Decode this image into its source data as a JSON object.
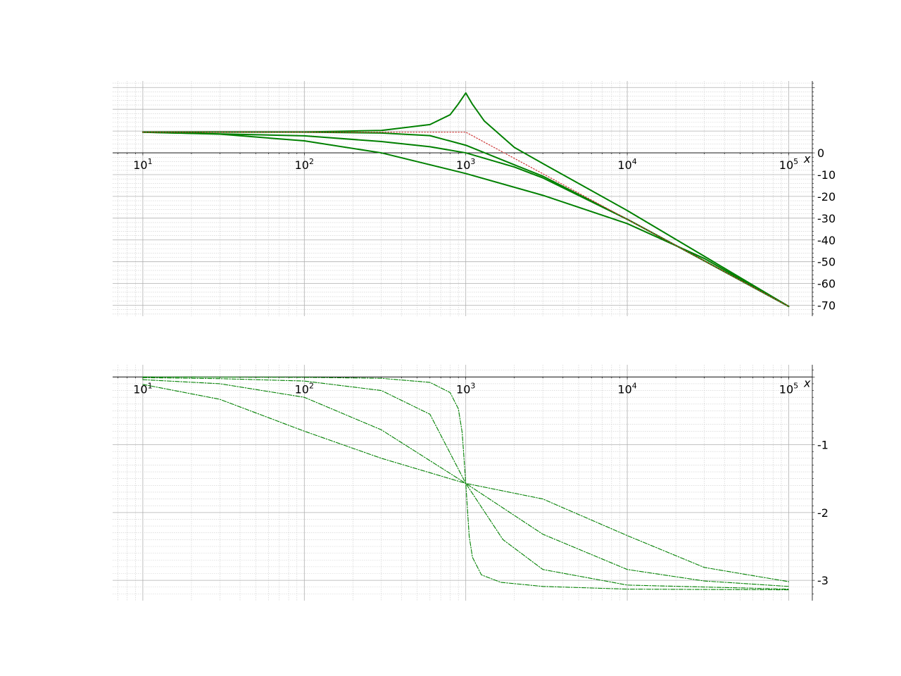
{
  "chart_data": [
    {
      "type": "line",
      "xscale": "log",
      "xlim": [
        6.5,
        140000
      ],
      "ylim": [
        -75,
        33
      ],
      "grid": true,
      "x_axis_label": "x",
      "x_ticks": [
        {
          "value": 10,
          "base": "10",
          "exp": "1"
        },
        {
          "value": 100,
          "base": "10",
          "exp": "2"
        },
        {
          "value": 1000,
          "base": "10",
          "exp": "3"
        },
        {
          "value": 10000,
          "base": "10",
          "exp": "4"
        },
        {
          "value": 100000,
          "base": "10",
          "exp": "5"
        }
      ],
      "y_ticks": [
        {
          "value": 0,
          "label": "0"
        },
        {
          "value": -10,
          "label": "-10"
        },
        {
          "value": -20,
          "label": "-20"
        },
        {
          "value": -30,
          "label": "-30"
        },
        {
          "value": -40,
          "label": "-40"
        },
        {
          "value": -50,
          "label": "-50"
        },
        {
          "value": -60,
          "label": "-60"
        },
        {
          "value": -70,
          "label": "-70"
        }
      ],
      "series": [
        {
          "color": "#008000",
          "style": "solid",
          "x": [
            10,
            100,
            300,
            600,
            800,
            900,
            1000,
            1100,
            1300,
            2000,
            3000,
            10000,
            100000
          ],
          "y": [
            9.54,
            9.56,
            10.3,
            13.0,
            17.5,
            22.5,
            27.5,
            22.3,
            14.7,
            2.5,
            -4.9,
            -26.5,
            -70.5
          ]
        },
        {
          "color": "#008000",
          "style": "solid",
          "x": [
            10,
            100,
            300,
            600,
            1000,
            2000,
            3000,
            10000,
            100000
          ],
          "y": [
            9.54,
            9.51,
            9.1,
            7.9,
            3.5,
            -5.5,
            -10.7,
            -30.5,
            -70.5
          ]
        },
        {
          "color": "#008000",
          "style": "solid",
          "x": [
            10,
            100,
            300,
            600,
            1000,
            2000,
            3000,
            10000,
            100000
          ],
          "y": [
            9.5,
            7.8,
            5.2,
            2.8,
            0.0,
            -6.5,
            -11.5,
            -30.5,
            -70.5
          ]
        },
        {
          "color": "#008000",
          "style": "solid",
          "x": [
            10,
            30,
            100,
            300,
            1000,
            3000,
            10000,
            30000,
            100000
          ],
          "y": [
            9.46,
            8.6,
            5.5,
            0.0,
            -9.5,
            -19.5,
            -32.5,
            -48.5,
            -70.5
          ]
        },
        {
          "color": "#cc3333",
          "style": "dotted",
          "x": [
            10,
            100,
            1000,
            10000,
            100000
          ],
          "y": [
            9.5,
            9.5,
            9.5,
            -30.5,
            -70.5
          ]
        }
      ]
    },
    {
      "type": "line",
      "xscale": "log",
      "xlim": [
        6.5,
        140000
      ],
      "ylim": [
        -3.3,
        0.18
      ],
      "grid": true,
      "x_axis_label": "x",
      "x_ticks": [
        {
          "value": 10,
          "base": "10",
          "exp": "1"
        },
        {
          "value": 100,
          "base": "10",
          "exp": "2"
        },
        {
          "value": 1000,
          "base": "10",
          "exp": "3"
        },
        {
          "value": 10000,
          "base": "10",
          "exp": "4"
        },
        {
          "value": 100000,
          "base": "10",
          "exp": "5"
        }
      ],
      "y_ticks": [
        {
          "value": -1,
          "label": "-1"
        },
        {
          "value": -2,
          "label": "-2"
        },
        {
          "value": -3,
          "label": "-3"
        }
      ],
      "series": [
        {
          "color": "#008000",
          "style": "dashdot",
          "x": [
            10,
            100,
            300,
            600,
            800,
            900,
            950,
            1000,
            1050,
            1100,
            1250,
            1650,
            3000,
            10000,
            100000
          ],
          "y": [
            0.0,
            -0.005,
            -0.02,
            -0.08,
            -0.23,
            -0.47,
            -0.82,
            -1.57,
            -2.35,
            -2.66,
            -2.92,
            -3.03,
            -3.09,
            -3.13,
            -3.14
          ]
        },
        {
          "color": "#008000",
          "style": "dashdot",
          "x": [
            10,
            30,
            100,
            300,
            600,
            1000,
            1700,
            3000,
            10000,
            100000
          ],
          "y": [
            -0.01,
            -0.025,
            -0.06,
            -0.2,
            -0.55,
            -1.57,
            -2.4,
            -2.84,
            -3.07,
            -3.13
          ]
        },
        {
          "color": "#008000",
          "style": "dashdot",
          "x": [
            10,
            30,
            100,
            300,
            1000,
            3000,
            10000,
            30000,
            100000
          ],
          "y": [
            -0.04,
            -0.1,
            -0.3,
            -0.78,
            -1.57,
            -2.32,
            -2.84,
            -3.01,
            -3.09
          ]
        },
        {
          "color": "#008000",
          "style": "dashdot",
          "x": [
            10,
            30,
            100,
            300,
            1000,
            3000,
            10000,
            30000,
            100000
          ],
          "y": [
            -0.11,
            -0.33,
            -0.8,
            -1.2,
            -1.57,
            -1.8,
            -2.34,
            -2.81,
            -3.02
          ]
        }
      ]
    }
  ]
}
